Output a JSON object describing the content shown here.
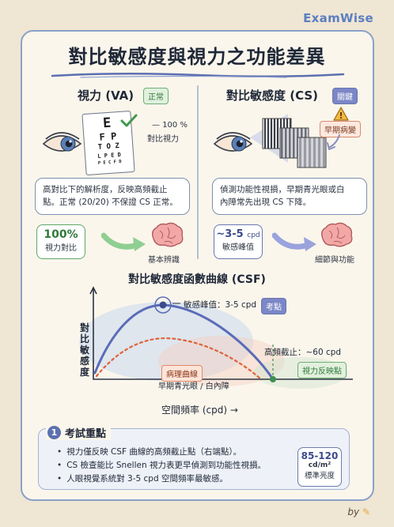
{
  "brand": "ExamWise",
  "title": "對比敏感度與視力之功能差異",
  "va": {
    "heading": "視力 (VA)",
    "tag": "正常",
    "chart_rows": [
      "E",
      "F P",
      "T O Z",
      "L P E D",
      "P E C F D"
    ],
    "check_label_1": "100 %",
    "check_label_2": "對比視力",
    "bubble_line1": "高對比下的解析度，反映高頻截止",
    "bubble_line2": "點。正常 (20/20) 不保證 CS 正常。",
    "metric_value": "100%",
    "metric_label": "視力對比",
    "brain_label": "基本辨識"
  },
  "cs": {
    "heading": "對比敏感度 (CS)",
    "tag": "關鍵",
    "warning_label": "早期病變",
    "bubble_line1": "偵測功能性視損，早期青光眼或白",
    "bubble_line2": "內障常先出現 CS 下降。",
    "metric_value": "~3-5",
    "metric_unit": "cpd",
    "metric_label": "敏感峰值",
    "brain_label": "細節與功能"
  },
  "csf": {
    "title": "對比敏感度函數曲線 (CSF)",
    "ylabel": "對比敏感度",
    "xlabel": "空間頻率 (cpd) →",
    "peak_label": "敏感峰值：3-5 cpd",
    "peak_tag": "考點",
    "cutoff_label": "高頻截止：~60 cpd",
    "va_point_label": "視力反映點",
    "patho_label": "病理曲線",
    "patho_sub": "早期青光眼 / 白內障",
    "colors": {
      "normal": "#5a6cb8",
      "pathological": "#e0623a",
      "va_point": "#3e8f4e"
    }
  },
  "exam": {
    "number": "1",
    "heading": "考試重點",
    "points": [
      "視力僅反映 CSF 曲線的高頻截止點（右端點）。",
      "CS 檢查能比 Snellen 視力表更早偵測到功能性視損。",
      "人眼視覺系統對 3-5 cpd 空間頻率最敏感。"
    ],
    "luminance_value": "85-120",
    "luminance_unit": "cd/m²",
    "luminance_label": "標準亮度"
  },
  "signature": "by"
}
